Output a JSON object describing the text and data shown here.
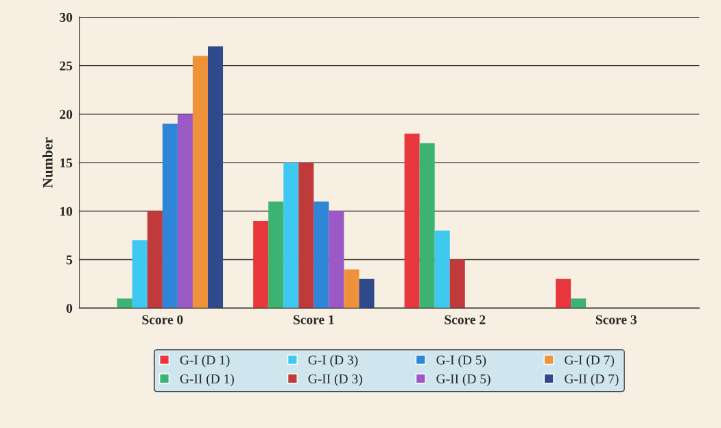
{
  "chart_data": {
    "type": "bar",
    "ylabel": "Number",
    "categories": [
      "Score 0",
      "Score 1",
      "Score 2",
      "Score 3"
    ],
    "series": [
      {
        "name": "G-I (D 1)",
        "color": "#e8383d",
        "values": [
          0,
          9,
          18,
          3
        ]
      },
      {
        "name": "G-II (D 1)",
        "color": "#3cb371",
        "values": [
          1,
          11,
          17,
          1
        ]
      },
      {
        "name": "G-I (D 3)",
        "color": "#3fc8f0",
        "values": [
          7,
          15,
          8,
          0
        ]
      },
      {
        "name": "G-II (D 3)",
        "color": "#c0393b",
        "values": [
          10,
          15,
          5,
          0
        ]
      },
      {
        "name": "G-I (D 5)",
        "color": "#2f86d6",
        "values": [
          19,
          11,
          0,
          0
        ]
      },
      {
        "name": "G-II (D 5)",
        "color": "#9b59c6",
        "values": [
          20,
          10,
          0,
          0
        ]
      },
      {
        "name": "G-I (D 7)",
        "color": "#f0923a",
        "values": [
          26,
          4,
          0,
          0
        ]
      },
      {
        "name": "G-II (D 7)",
        "color": "#2f4a8a",
        "values": [
          27,
          3,
          0,
          0
        ]
      }
    ],
    "ylim": [
      0,
      30
    ],
    "yticks": [
      0,
      5,
      10,
      15,
      20,
      25,
      30
    ],
    "grid": "y",
    "legend": "bottom"
  }
}
